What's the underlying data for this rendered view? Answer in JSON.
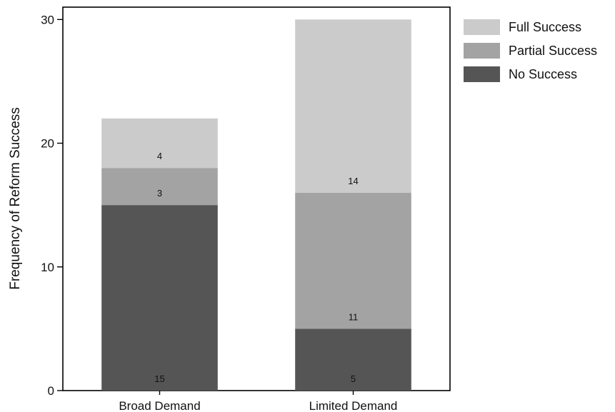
{
  "chart_data": {
    "type": "bar",
    "stacked": true,
    "title": "",
    "xlabel": "",
    "ylabel": "Frequency of Reform Success",
    "ylim": [
      0,
      31
    ],
    "yticks": [
      0,
      10,
      20,
      30
    ],
    "categories": [
      "Broad Demand",
      "Limited Demand"
    ],
    "series": [
      {
        "name": "No Success",
        "values": [
          15,
          5
        ],
        "color": "#555555"
      },
      {
        "name": "Partial Success",
        "values": [
          3,
          11
        ],
        "color": "#a3a3a3"
      },
      {
        "name": "Full Success",
        "values": [
          4,
          14
        ],
        "color": "#cbcbcb"
      }
    ],
    "legend": {
      "placement": "right",
      "order": [
        "Full Success",
        "Partial Success",
        "No Success"
      ]
    },
    "grid": false
  }
}
